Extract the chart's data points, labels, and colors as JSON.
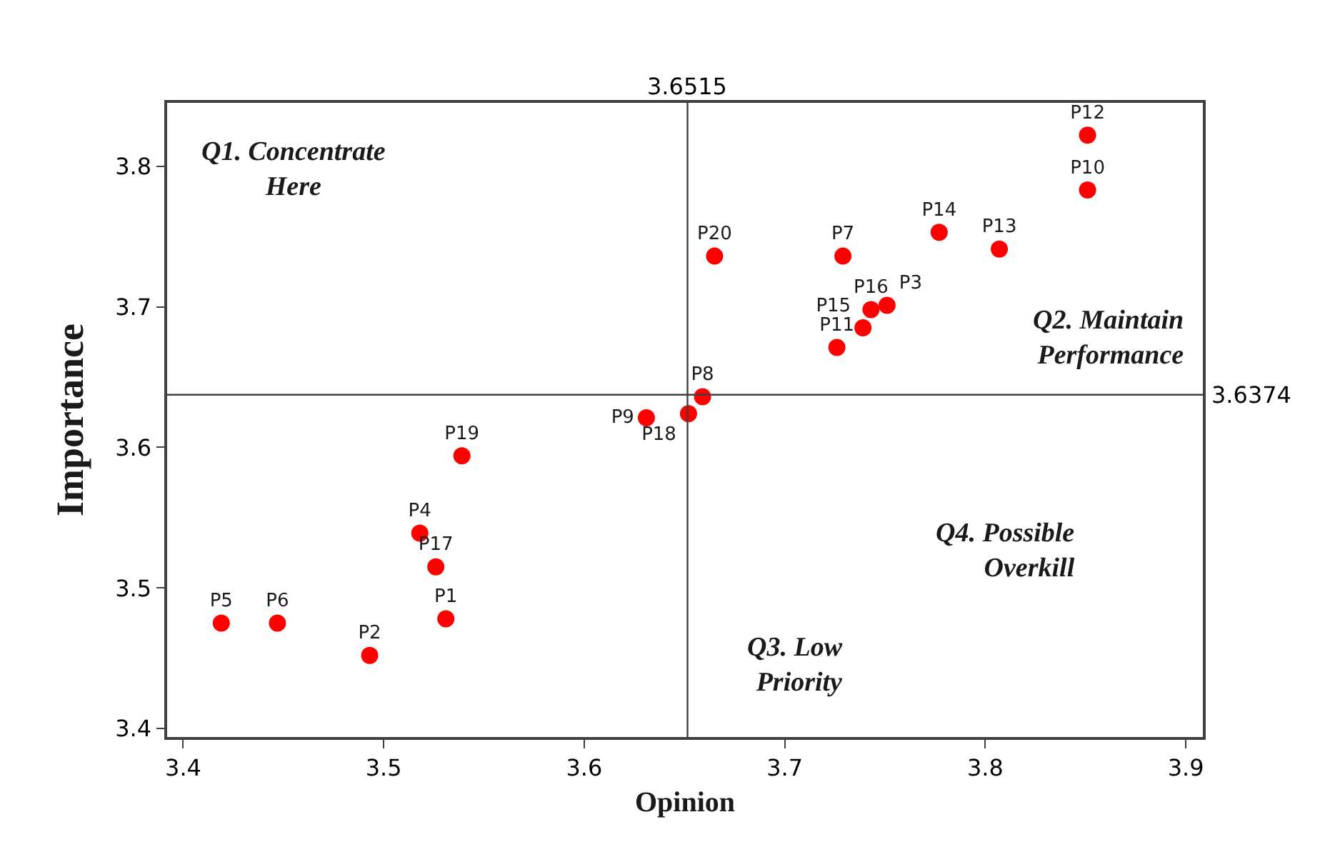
{
  "chart_data": {
    "type": "scatter",
    "xlabel": "Opinion",
    "ylabel": "Importance",
    "x": [
      3.531,
      3.493,
      3.751,
      3.518,
      3.419,
      3.447,
      3.729,
      3.659,
      3.631,
      3.851,
      3.726,
      3.851,
      3.807,
      3.777,
      3.739,
      3.743,
      3.526,
      3.652,
      3.539,
      3.665
    ],
    "series": [
      {
        "color": "#ff0000",
        "values": [
          3.478,
          3.452,
          3.701,
          3.539,
          3.475,
          3.475,
          3.736,
          3.636,
          3.621,
          3.783,
          3.671,
          3.822,
          3.741,
          3.753,
          3.685,
          3.698,
          3.515,
          3.624,
          3.594,
          3.736
        ],
        "value_labels": [
          "P1",
          "P2",
          "P3",
          "P4",
          "P5",
          "P6",
          "P7",
          "P8",
          "P9",
          "P10",
          "P11",
          "P12",
          "P13",
          "P14",
          "P15",
          "P16",
          "P17",
          "P18",
          "P19",
          "P20"
        ]
      }
    ],
    "xlim": [
      3.392,
      3.9085
    ],
    "ylim": [
      3.394,
      3.845
    ],
    "xticks": [
      3.4,
      3.5,
      3.6,
      3.7,
      3.8,
      3.9
    ],
    "yticks": [
      3.4,
      3.5,
      3.6,
      3.7,
      3.8
    ],
    "ref_lines": [
      {
        "axis": "x",
        "value": 3.6515,
        "label": "3.6515",
        "color": "#404040"
      },
      {
        "axis": "y",
        "value": 3.6374,
        "label": "3.6374",
        "color": "#404040"
      }
    ],
    "annotations": [
      "Q1. Concentrate\nHere",
      "Q2. Maintain\nPerformance",
      "Q3. Low\nPriority",
      "Q4. Possible\nOverkill"
    ],
    "grid": false,
    "marker": "circle"
  }
}
